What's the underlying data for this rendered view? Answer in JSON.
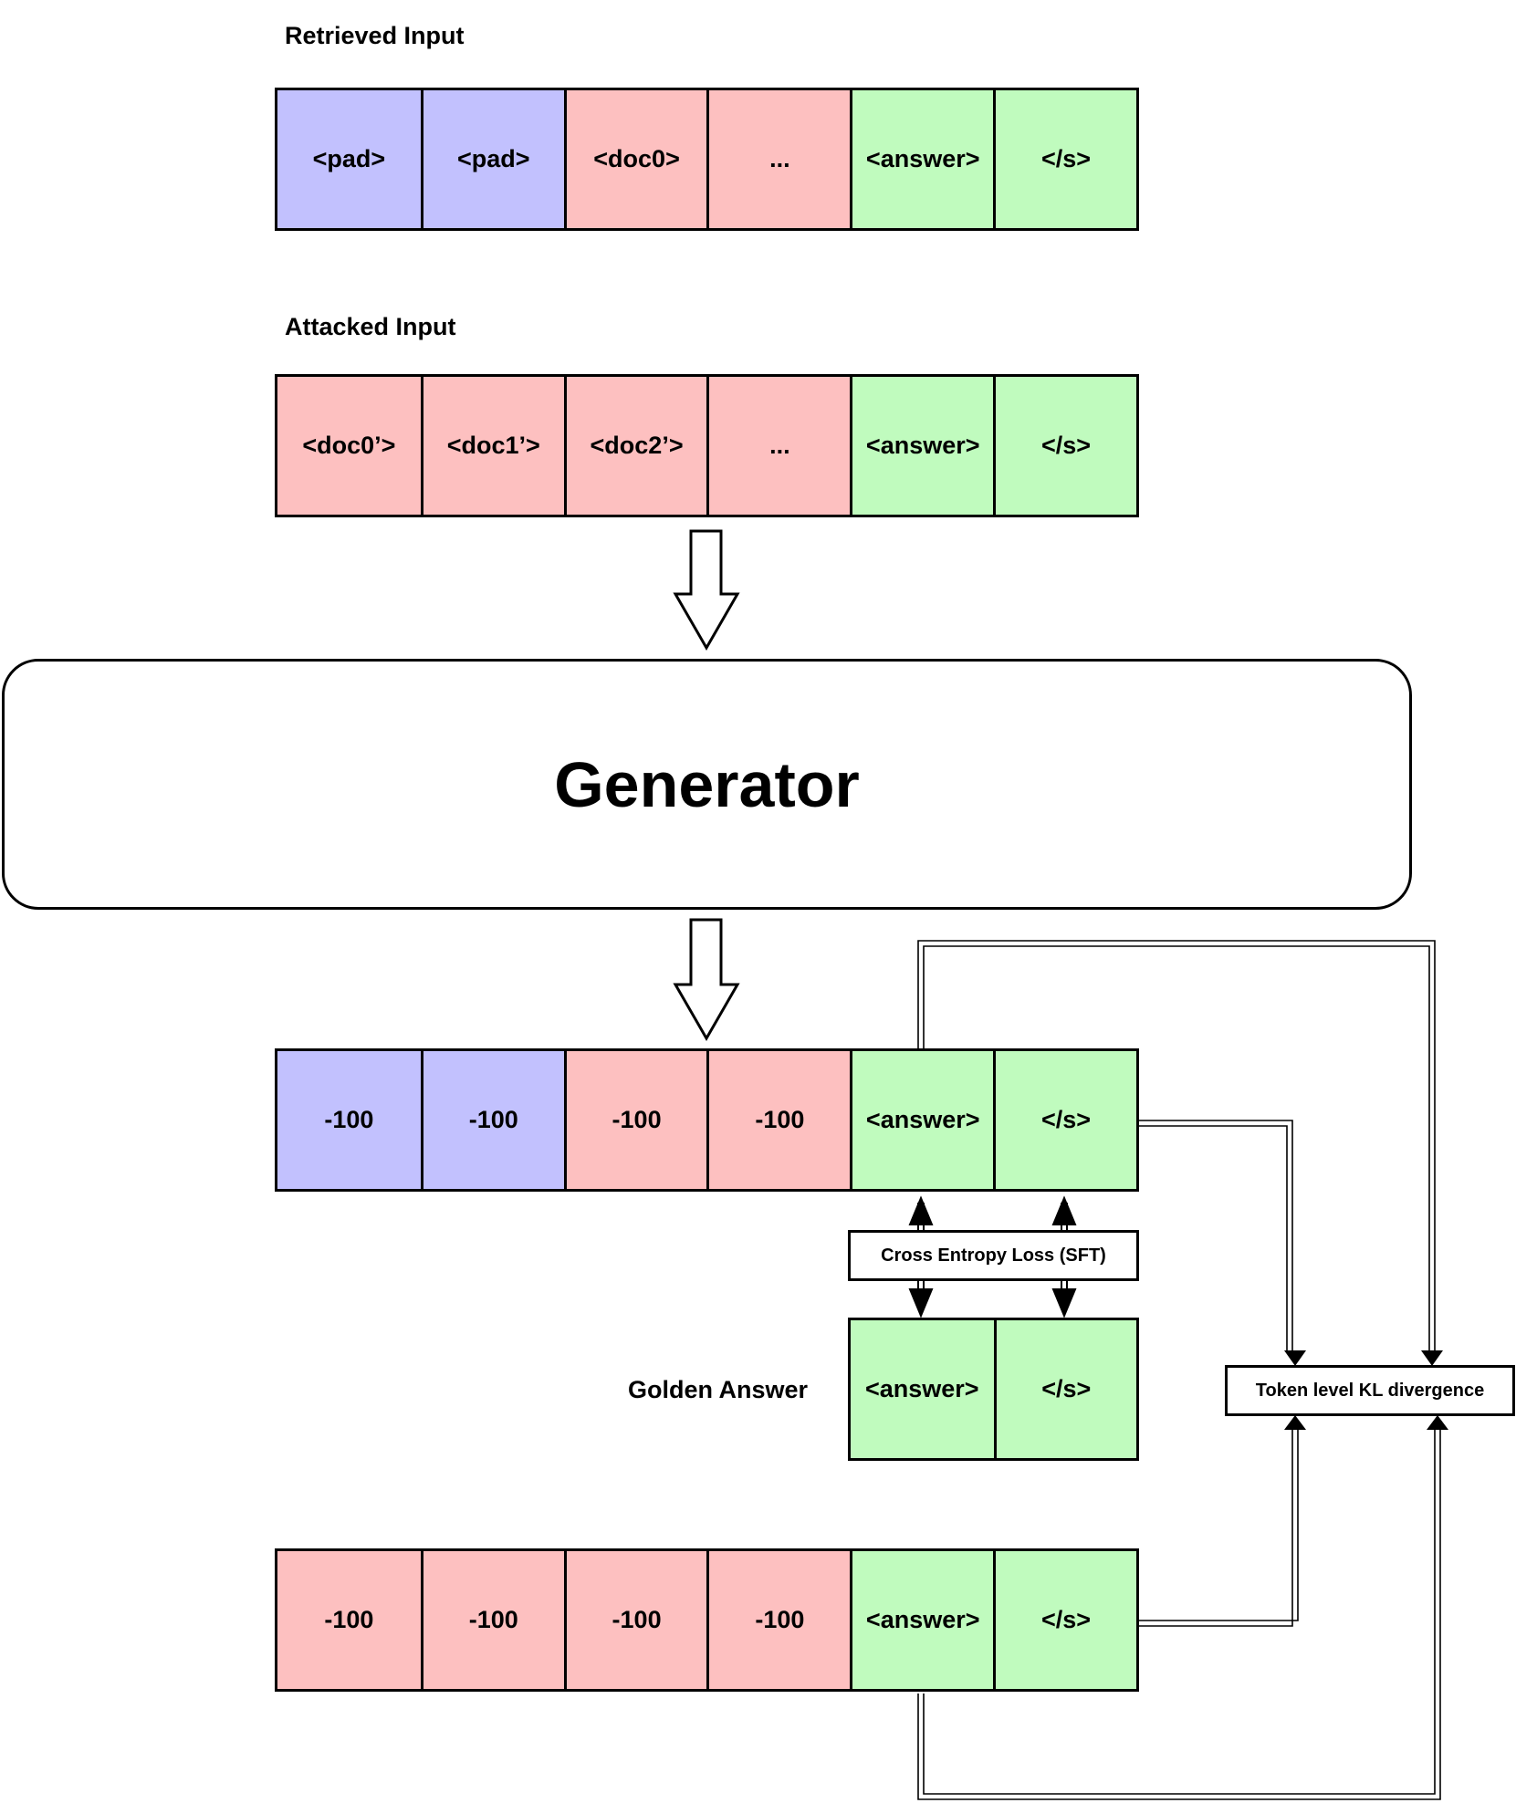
{
  "labels": {
    "retrieved_input": "Retrieved Input",
    "attacked_input": "Attacked Input",
    "golden_answer": "Golden Answer"
  },
  "generator": {
    "label": "Generator"
  },
  "rows": {
    "retrieved": [
      "<pad>",
      "<pad>",
      "<doc0>",
      "...",
      "<answer>",
      "</s>"
    ],
    "attacked": [
      "<doc0’>",
      "<doc1’>",
      "<doc2’>",
      "...",
      "<answer>",
      "</s>"
    ],
    "output": [
      "-100",
      "-100",
      "-100",
      "-100",
      "<answer>",
      "</s>"
    ],
    "golden": [
      "<answer>",
      "</s>"
    ],
    "bottom": [
      "-100",
      "-100",
      "-100",
      "-100",
      "<answer>",
      "</s>"
    ]
  },
  "boxes": {
    "sft_loss": "Cross Entropy Loss (SFT)",
    "kl_divergence": "Token level KL divergence"
  },
  "colors": {
    "pad": "#c2c1fe",
    "doc": "#fdc0c0",
    "answer": "#c0fbbe"
  }
}
